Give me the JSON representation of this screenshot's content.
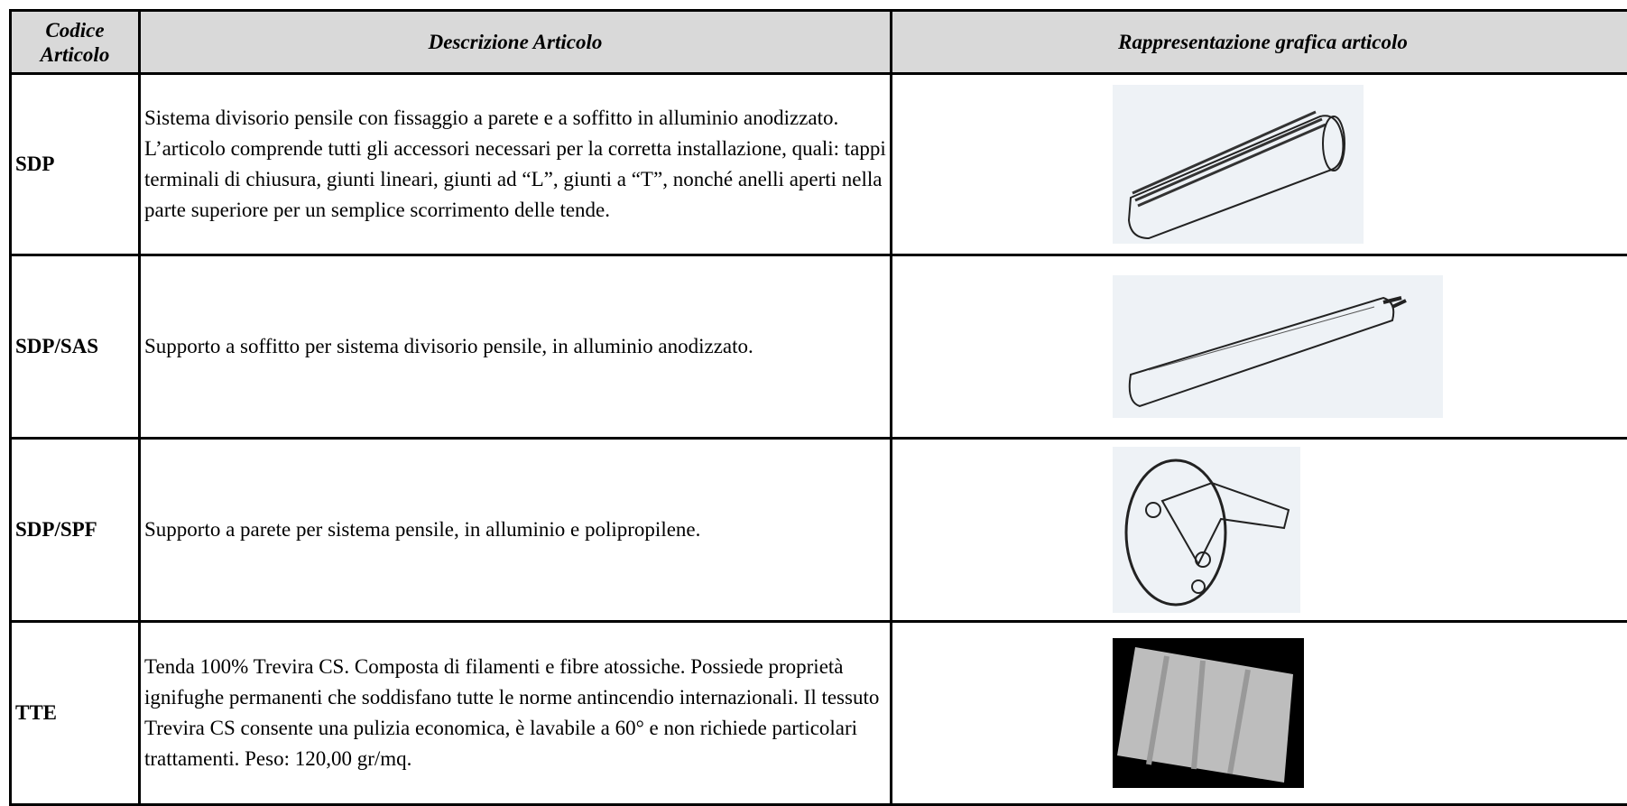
{
  "table": {
    "header": [
      "Codice Articolo",
      "Descrizione Articolo",
      "Rappresentazione grafica articolo"
    ],
    "rows": [
      [
        "SDP",
        "Sistema divisorio pensile con fissaggio a parete e a soffitto in alluminio anodizzato. L’articolo comprende tutti gli accessori necessari per la corretta installazione, quali: tappi terminali di chiusura, giunti lineari, giunti ad “L”, giunti a “T”, nonché anelli aperti nella parte superiore per un semplice scorrimento delle tende."
      ],
      [
        "SDP/SAS",
        "Supporto a soffitto per sistema divisorio pensile, in alluminio anodizzato."
      ],
      [
        "SDP/SPF",
        "Supporto a parete per sistema pensile, in alluminio e polipropilene."
      ],
      [
        "TTE",
        "Tenda 100% Trevira CS. Composta di filamenti e fibre atossiche.  Possiede proprietà  ignifughe  permanenti che    soddisfano tutte le norme antincendio internazionali.  Il  tessuto Trevira CS consente una pulizia economica, è  lavabile a 60° e non richiede particolari trattamenti. Peso: 120,00 gr/mq."
      ]
    ]
  }
}
